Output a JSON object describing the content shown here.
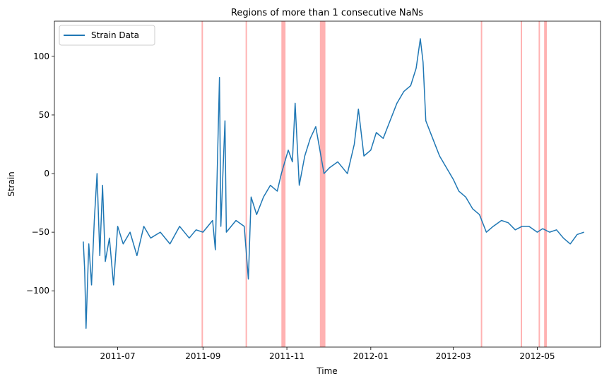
{
  "chart_data": {
    "type": "line",
    "title": "Regions of more than 1 consecutive NaNs",
    "xlabel": "Time",
    "ylabel": "Strain",
    "x_range": [
      "2011-05-16",
      "2012-06-16"
    ],
    "ylim": [
      -148,
      130
    ],
    "x_ticks": [
      {
        "date": "2011-07-01",
        "label": "2011-07"
      },
      {
        "date": "2011-09-01",
        "label": "2011-09"
      },
      {
        "date": "2011-11-01",
        "label": "2011-11"
      },
      {
        "date": "2012-01-01",
        "label": "2012-01"
      },
      {
        "date": "2012-03-01",
        "label": "2012-03"
      },
      {
        "date": "2012-05-01",
        "label": "2012-05"
      }
    ],
    "y_ticks": [
      100,
      50,
      0,
      -50,
      -100
    ],
    "grid": false,
    "legend": {
      "position": "top-left",
      "entries": [
        "Strain Data"
      ]
    },
    "series": [
      {
        "name": "Strain Data",
        "color": "#1f77b4",
        "points": [
          [
            "2011-06-06",
            -58
          ],
          [
            "2011-06-07",
            -82
          ],
          [
            "2011-06-08",
            -132
          ],
          [
            "2011-06-10",
            -60
          ],
          [
            "2011-06-12",
            -95
          ],
          [
            "2011-06-14",
            -40
          ],
          [
            "2011-06-16",
            0
          ],
          [
            "2011-06-18",
            -70
          ],
          [
            "2011-06-20",
            -10
          ],
          [
            "2011-06-22",
            -75
          ],
          [
            "2011-06-25",
            -55
          ],
          [
            "2011-06-28",
            -95
          ],
          [
            "2011-07-01",
            -45
          ],
          [
            "2011-07-05",
            -60
          ],
          [
            "2011-07-10",
            -50
          ],
          [
            "2011-07-15",
            -70
          ],
          [
            "2011-07-20",
            -45
          ],
          [
            "2011-07-25",
            -55
          ],
          [
            "2011-08-01",
            -50
          ],
          [
            "2011-08-08",
            -60
          ],
          [
            "2011-08-15",
            -45
          ],
          [
            "2011-08-22",
            -55
          ],
          [
            "2011-08-27",
            -48
          ],
          [
            "2011-09-01",
            -50
          ],
          [
            "2011-09-08",
            -40
          ],
          [
            "2011-09-10",
            -65
          ],
          [
            "2011-09-13",
            82
          ],
          [
            "2011-09-14",
            -45
          ],
          [
            "2011-09-17",
            45
          ],
          [
            "2011-09-18",
            -50
          ],
          [
            "2011-09-25",
            -40
          ],
          [
            "2011-10-01",
            -45
          ],
          [
            "2011-10-04",
            -90
          ],
          [
            "2011-10-06",
            -20
          ],
          [
            "2011-10-10",
            -35
          ],
          [
            "2011-10-15",
            -20
          ],
          [
            "2011-10-20",
            -10
          ],
          [
            "2011-10-25",
            -15
          ],
          [
            "2011-10-28",
            0
          ],
          [
            "2011-11-02",
            20
          ],
          [
            "2011-11-05",
            10
          ],
          [
            "2011-11-07",
            60
          ],
          [
            "2011-11-10",
            -10
          ],
          [
            "2011-11-14",
            15
          ],
          [
            "2011-11-18",
            30
          ],
          [
            "2011-11-22",
            40
          ],
          [
            "2011-11-25",
            20
          ],
          [
            "2011-11-28",
            0
          ],
          [
            "2011-12-02",
            5
          ],
          [
            "2011-12-08",
            10
          ],
          [
            "2011-12-15",
            0
          ],
          [
            "2011-12-20",
            25
          ],
          [
            "2011-12-23",
            55
          ],
          [
            "2011-12-27",
            15
          ],
          [
            "2012-01-01",
            20
          ],
          [
            "2012-01-05",
            35
          ],
          [
            "2012-01-10",
            30
          ],
          [
            "2012-01-15",
            45
          ],
          [
            "2012-01-20",
            60
          ],
          [
            "2012-01-25",
            70
          ],
          [
            "2012-01-30",
            75
          ],
          [
            "2012-02-03",
            90
          ],
          [
            "2012-02-06",
            115
          ],
          [
            "2012-02-08",
            95
          ],
          [
            "2012-02-10",
            45
          ],
          [
            "2012-02-15",
            30
          ],
          [
            "2012-02-20",
            15
          ],
          [
            "2012-02-25",
            5
          ],
          [
            "2012-03-01",
            -5
          ],
          [
            "2012-03-05",
            -15
          ],
          [
            "2012-03-10",
            -20
          ],
          [
            "2012-03-15",
            -30
          ],
          [
            "2012-03-20",
            -35
          ],
          [
            "2012-03-25",
            -50
          ],
          [
            "2012-03-30",
            -45
          ],
          [
            "2012-04-05",
            -40
          ],
          [
            "2012-04-10",
            -42
          ],
          [
            "2012-04-15",
            -48
          ],
          [
            "2012-04-20",
            -45
          ],
          [
            "2012-04-25",
            -45
          ],
          [
            "2012-05-01",
            -50
          ],
          [
            "2012-05-05",
            -47
          ],
          [
            "2012-05-10",
            -50
          ],
          [
            "2012-05-15",
            -48
          ],
          [
            "2012-05-20",
            -55
          ],
          [
            "2012-05-25",
            -60
          ],
          [
            "2012-05-30",
            -52
          ],
          [
            "2012-06-04",
            -50
          ]
        ]
      }
    ],
    "nan_regions": {
      "color": "#ff0000",
      "opacity": 0.3,
      "spans": [
        [
          "2011-08-31",
          "2011-09-01"
        ],
        [
          "2011-10-02",
          "2011-10-03"
        ],
        [
          "2011-10-28",
          "2011-10-31"
        ],
        [
          "2011-11-25",
          "2011-11-29"
        ],
        [
          "2012-03-21",
          "2012-03-22"
        ],
        [
          "2012-04-19",
          "2012-04-20"
        ],
        [
          "2012-05-02",
          "2012-05-03"
        ],
        [
          "2012-05-06",
          "2012-05-08"
        ]
      ]
    }
  }
}
